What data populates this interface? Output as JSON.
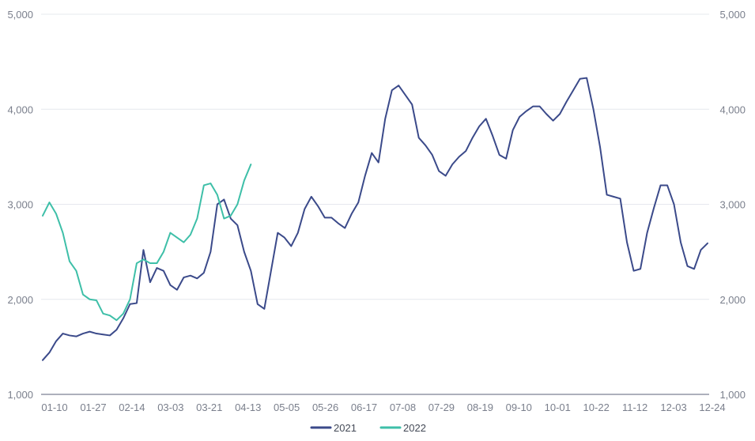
{
  "chart_data": {
    "type": "line",
    "title": "",
    "xlabel": "",
    "ylabel": "",
    "ylim": [
      1000,
      5000
    ],
    "y_ticks": [
      1000,
      2000,
      3000,
      4000,
      5000
    ],
    "y_tick_labels": [
      "1,000",
      "2,000",
      "3,000",
      "4,000",
      "5,000"
    ],
    "x_tick_labels": [
      "01-10",
      "01-27",
      "02-14",
      "03-03",
      "03-21",
      "04-13",
      "05-05",
      "05-26",
      "06-17",
      "07-08",
      "07-29",
      "08-19",
      "09-10",
      "10-01",
      "10-22",
      "11-12",
      "12-03",
      "12-24"
    ],
    "axes": "y labels on both left and right",
    "grid": "horizontal",
    "legend_position": "bottom-center",
    "series": [
      {
        "name": "2021",
        "color": "#3b4a8a",
        "values": [
          1360,
          1440,
          1560,
          1640,
          1620,
          1610,
          1640,
          1660,
          1640,
          1630,
          1620,
          1680,
          1800,
          1950,
          1960,
          2520,
          2180,
          2330,
          2300,
          2150,
          2100,
          2230,
          2250,
          2220,
          2280,
          2500,
          3000,
          3050,
          2850,
          2780,
          2500,
          2300,
          1950,
          1900,
          2300,
          2700,
          2650,
          2560,
          2700,
          2950,
          3080,
          2980,
          2860,
          2860,
          2800,
          2750,
          2900,
          3020,
          3300,
          3540,
          3440,
          3900,
          4200,
          4250,
          4150,
          4050,
          3700,
          3620,
          3520,
          3350,
          3300,
          3420,
          3500,
          3560,
          3700,
          3820,
          3900,
          3720,
          3520,
          3480,
          3780,
          3920,
          3980,
          4030,
          4030,
          3950,
          3880,
          3950,
          4080,
          4200,
          4320,
          4330,
          4000,
          3600,
          3100,
          3080,
          3060,
          2600,
          2300,
          2320,
          2700,
          2960,
          3200,
          3200,
          3000,
          2600,
          2350,
          2320,
          2520,
          2590
        ]
      },
      {
        "name": "2022",
        "color": "#3ebfa8",
        "values": [
          2880,
          3020,
          2900,
          2700,
          2400,
          2300,
          2050,
          2000,
          1990,
          1850,
          1830,
          1780,
          1850,
          2000,
          2380,
          2420,
          2380,
          2380,
          2500,
          2700,
          2650,
          2600,
          2680,
          2850,
          3200,
          3220,
          3100,
          2850,
          2880,
          3000,
          3250,
          3420
        ]
      }
    ]
  }
}
